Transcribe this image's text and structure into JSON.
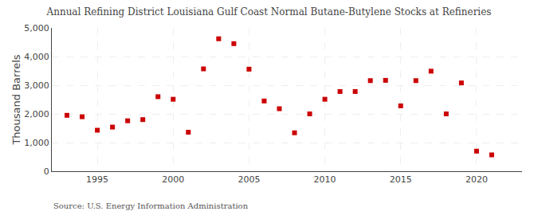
{
  "chart_data": {
    "type": "scatter",
    "title": "Annual Refining District Louisiana Gulf Coast Normal Butane-Butylene Stocks at Refineries",
    "ylabel": "Thousand Barrels",
    "source": "Source: U.S. Energy Information Administration",
    "x": [
      1993,
      1994,
      1995,
      1996,
      1997,
      1998,
      1999,
      2000,
      2001,
      2002,
      2003,
      2004,
      2005,
      2006,
      2007,
      2008,
      2009,
      2010,
      2011,
      2012,
      2013,
      2014,
      2015,
      2016,
      2017,
      2018,
      2019,
      2020,
      2021
    ],
    "values": [
      1950,
      1900,
      1430,
      1540,
      1760,
      1800,
      2600,
      2510,
      1360,
      3570,
      4620,
      4450,
      3560,
      2450,
      2180,
      1340,
      2000,
      2510,
      2780,
      2780,
      3160,
      3170,
      2280,
      3160,
      3490,
      2000,
      3080,
      700,
      570
    ],
    "color": "#cc0000",
    "marker": "square",
    "xlim": [
      1992,
      2023
    ],
    "xticks": [
      1995,
      2000,
      2005,
      2010,
      2015,
      2020
    ],
    "ylim": [
      0,
      5000
    ],
    "yticks": [
      0,
      {
        "value": 1000,
        "label": "1,000"
      },
      {
        "value": 2000,
        "label": "2,000"
      },
      {
        "value": 3000,
        "label": "3,000"
      },
      {
        "value": 4000,
        "label": "4,000"
      },
      {
        "value": 5000,
        "label": "5,000"
      }
    ],
    "grid": true
  }
}
